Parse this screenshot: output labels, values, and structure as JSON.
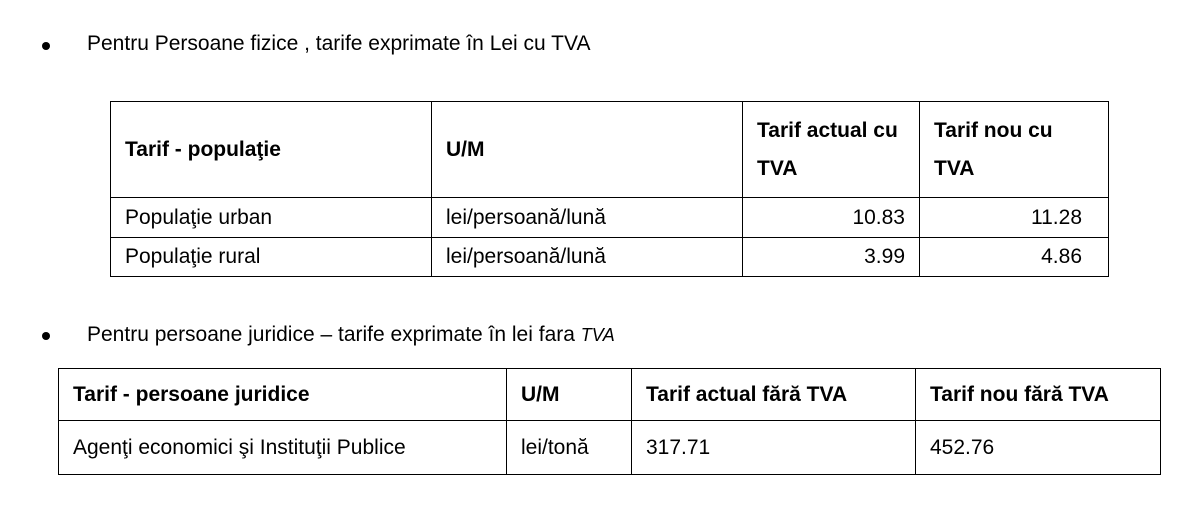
{
  "section1": {
    "heading": "Pentru Persoane fizice , tarife exprimate în Lei cu TVA",
    "headers": [
      "Tarif - populaţie",
      "U/M",
      "Tarif actual cu TVA",
      "Tarif nou cu TVA"
    ],
    "rows": [
      [
        "Populaţie urban",
        "lei/persoană/lună",
        "10.83",
        "11.28"
      ],
      [
        "Populaţie rural",
        "lei/persoană/lună",
        "3.99",
        "4.86"
      ]
    ]
  },
  "section2": {
    "heading": "Pentru persoane juridice – tarife exprimate în lei fara ",
    "heading_italic": "TVA",
    "headers": [
      "Tarif - persoane juridice",
      "U/M",
      "Tarif actual fără TVA",
      "Tarif nou fără TVA"
    ],
    "rows": [
      [
        "Agenţi economici şi Instituţii Publice",
        "lei/tonă",
        "317.71",
        "452.76"
      ]
    ]
  }
}
